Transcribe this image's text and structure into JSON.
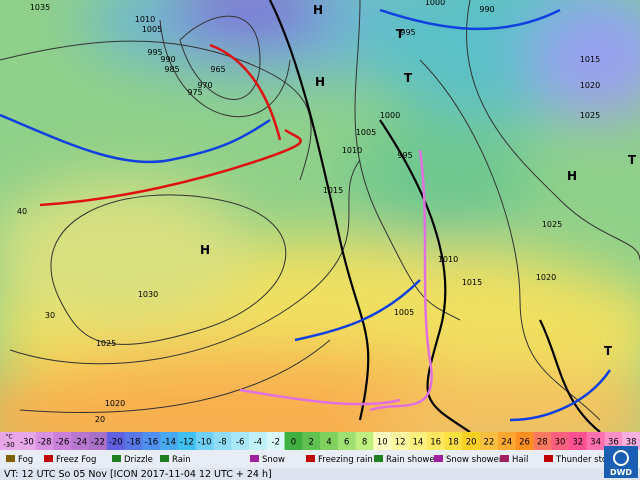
{
  "map": {
    "isobar_labels": [
      "1035",
      "1010",
      "1005",
      "995",
      "990",
      "985",
      "965",
      "970",
      "975",
      "1000",
      "995",
      "1010",
      "1005",
      "1015",
      "1030",
      "1025",
      "1020",
      "1010",
      "1015",
      "1020",
      "1025",
      "995",
      "990",
      "1000",
      "1015",
      "1020",
      "1025",
      "1005"
    ],
    "centers": [
      "H",
      "H",
      "H",
      "H",
      "T",
      "T",
      "T",
      "T"
    ],
    "temperature_labels": [
      "40",
      "30",
      "20"
    ]
  },
  "scale": {
    "unit": "°C",
    "values": [
      -30,
      -28,
      -26,
      -24,
      -22,
      -20,
      -18,
      -16,
      -14,
      -12,
      -10,
      -8,
      -6,
      -4,
      -2,
      0,
      2,
      4,
      6,
      8,
      10,
      12,
      14,
      16,
      18,
      20,
      22,
      24,
      26,
      28,
      30,
      32,
      34,
      36,
      38
    ]
  },
  "legend": [
    "Fog",
    "Freez Fog",
    "Drizzle",
    "Rain",
    "Snow",
    "Freezing rain",
    "Rain shower",
    "Snow shower",
    "Hail",
    "Thunder storm"
  ],
  "footer": {
    "valid_time": "VT: 12 UTC So  05 Nov [ICON 2017-11-04  12 UTC + 24 h]",
    "logo": "DWD"
  }
}
